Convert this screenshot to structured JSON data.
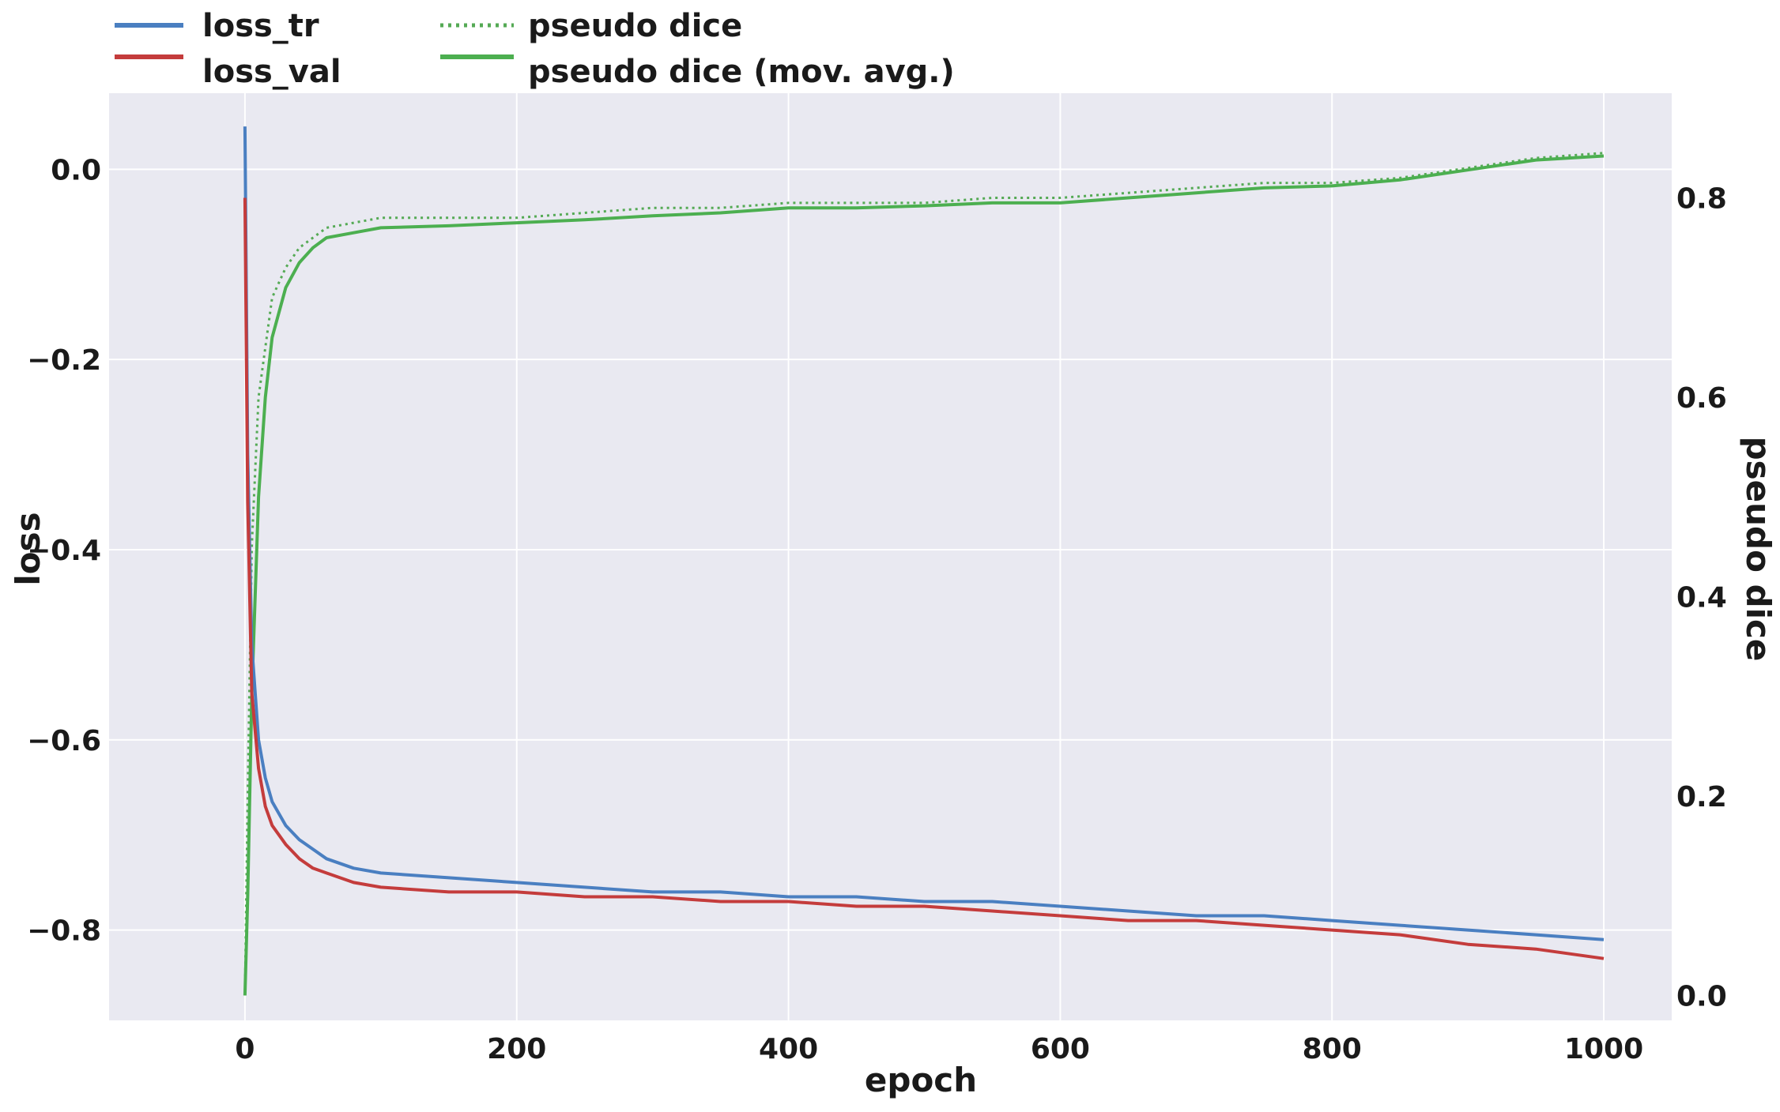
{
  "chart_data": {
    "type": "line",
    "xlabel": "epoch",
    "ylabel_left": "loss",
    "ylabel_right": "pseudo dice",
    "xlim": [
      -100,
      1050
    ],
    "ylim_left": [
      -0.895,
      0.08
    ],
    "ylim_right": [
      -0.025,
      0.905
    ],
    "x_ticks": [
      "0",
      "200",
      "400",
      "600",
      "800",
      "1000"
    ],
    "x_tick_values": [
      0,
      200,
      400,
      600,
      800,
      1000
    ],
    "y_left_ticks": [
      "0.0",
      "−0.2",
      "−0.4",
      "−0.6",
      "−0.8"
    ],
    "y_left_tick_values": [
      0.0,
      -0.2,
      -0.4,
      -0.6,
      -0.8
    ],
    "y_right_ticks": [
      "0.8",
      "0.6",
      "0.4",
      "0.2",
      "0.0"
    ],
    "y_right_tick_values": [
      0.8,
      0.6,
      0.4,
      0.2,
      0.0
    ],
    "grid": true,
    "legend_position": "top-left, above plot",
    "background_color": "#e9e9f1",
    "series": [
      {
        "name": "loss_tr",
        "axis": "left",
        "color": "#4a7fc1",
        "style": "solid",
        "x": [
          0,
          2,
          5,
          10,
          15,
          20,
          30,
          40,
          50,
          60,
          80,
          100,
          150,
          200,
          250,
          300,
          350,
          400,
          450,
          500,
          550,
          600,
          650,
          700,
          750,
          800,
          850,
          900,
          950,
          1000
        ],
        "y": [
          0.045,
          -0.3,
          -0.5,
          -0.6,
          -0.64,
          -0.665,
          -0.69,
          -0.705,
          -0.715,
          -0.725,
          -0.735,
          -0.74,
          -0.745,
          -0.75,
          -0.755,
          -0.76,
          -0.76,
          -0.765,
          -0.765,
          -0.77,
          -0.77,
          -0.775,
          -0.78,
          -0.785,
          -0.785,
          -0.79,
          -0.795,
          -0.8,
          -0.805,
          -0.81
        ]
      },
      {
        "name": "loss_val",
        "axis": "left",
        "color": "#c43c3c",
        "style": "solid",
        "x": [
          0,
          2,
          5,
          10,
          15,
          20,
          30,
          40,
          50,
          60,
          80,
          100,
          150,
          200,
          250,
          300,
          350,
          400,
          450,
          500,
          550,
          600,
          650,
          700,
          750,
          800,
          850,
          900,
          950,
          1000
        ],
        "y": [
          -0.03,
          -0.35,
          -0.55,
          -0.63,
          -0.67,
          -0.69,
          -0.71,
          -0.725,
          -0.735,
          -0.74,
          -0.75,
          -0.755,
          -0.76,
          -0.76,
          -0.765,
          -0.765,
          -0.77,
          -0.77,
          -0.775,
          -0.775,
          -0.78,
          -0.785,
          -0.79,
          -0.79,
          -0.795,
          -0.8,
          -0.805,
          -0.815,
          -0.82,
          -0.83
        ]
      },
      {
        "name": "pseudo dice",
        "axis": "right",
        "color": "#55aa55",
        "style": "dotted",
        "x": [
          0,
          2,
          5,
          10,
          15,
          20,
          30,
          40,
          50,
          60,
          80,
          100,
          150,
          200,
          250,
          300,
          350,
          400,
          450,
          500,
          550,
          600,
          650,
          700,
          750,
          800,
          850,
          900,
          950,
          1000
        ],
        "y": [
          0.0,
          0.2,
          0.45,
          0.6,
          0.65,
          0.7,
          0.73,
          0.75,
          0.76,
          0.77,
          0.775,
          0.78,
          0.78,
          0.78,
          0.785,
          0.79,
          0.79,
          0.795,
          0.795,
          0.795,
          0.8,
          0.8,
          0.805,
          0.81,
          0.815,
          0.815,
          0.82,
          0.83,
          0.84,
          0.845
        ]
      },
      {
        "name": "pseudo dice (mov. avg.)",
        "axis": "right",
        "color": "#4caf50",
        "style": "solid",
        "x": [
          0,
          2,
          5,
          10,
          15,
          20,
          30,
          40,
          50,
          60,
          80,
          100,
          150,
          200,
          250,
          300,
          350,
          400,
          450,
          500,
          550,
          600,
          650,
          700,
          750,
          800,
          850,
          900,
          950,
          1000
        ],
        "y": [
          0.0,
          0.1,
          0.3,
          0.5,
          0.6,
          0.66,
          0.71,
          0.735,
          0.75,
          0.76,
          0.765,
          0.77,
          0.772,
          0.775,
          0.778,
          0.782,
          0.785,
          0.79,
          0.79,
          0.792,
          0.795,
          0.795,
          0.8,
          0.805,
          0.81,
          0.812,
          0.818,
          0.828,
          0.838,
          0.842
        ]
      }
    ]
  }
}
